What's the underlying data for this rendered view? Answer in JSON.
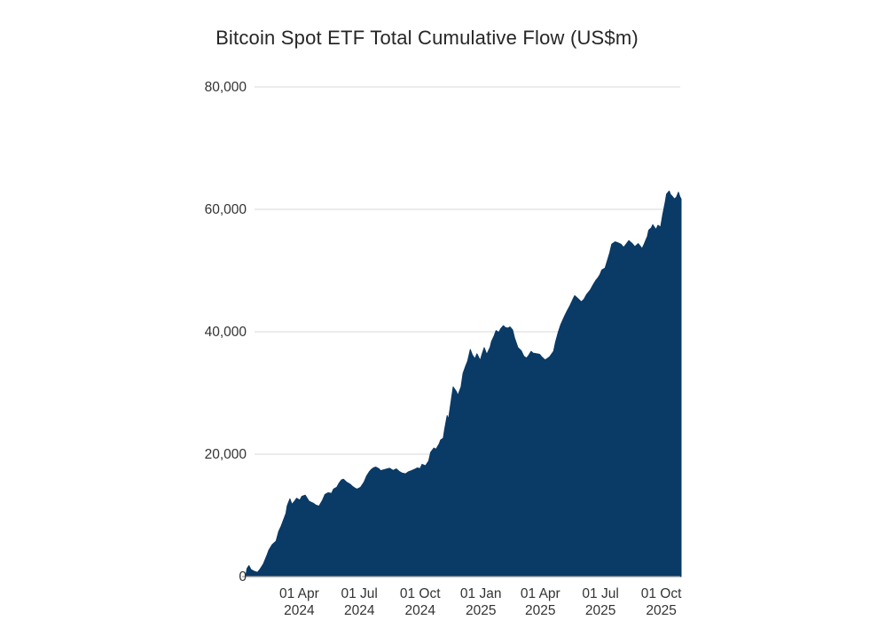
{
  "chart_data": {
    "type": "area",
    "title": "Bitcoin Spot ETF Total Cumulative Flow (US$m)",
    "series_name": "Total Cumulative Flow",
    "unit": "US$m",
    "fill_color": "#0a3a66",
    "background_color": "#ffffff",
    "grid_color": "#d8d8d8",
    "axis_line_color": "#999999",
    "text_color": "#333333",
    "grid": "horizontal",
    "legend": "none",
    "ylim": [
      0,
      80000
    ],
    "x_domain": [
      "2024-01-11",
      "2025-10-31"
    ],
    "y_ticks": [
      {
        "value": 0,
        "label": "0"
      },
      {
        "value": 20000,
        "label": "20,000"
      },
      {
        "value": 40000,
        "label": "40,000"
      },
      {
        "value": 60000,
        "label": "60,000"
      },
      {
        "value": 80000,
        "label": "80,000"
      }
    ],
    "x_ticks": [
      {
        "date": "2024-04-01",
        "line1": "01 Apr",
        "line2": "2024"
      },
      {
        "date": "2024-07-01",
        "line1": "01 Jul",
        "line2": "2024"
      },
      {
        "date": "2024-10-01",
        "line1": "01 Oct",
        "line2": "2024"
      },
      {
        "date": "2025-01-01",
        "line1": "01 Jan",
        "line2": "2025"
      },
      {
        "date": "2025-04-01",
        "line1": "01 Apr",
        "line2": "2025"
      },
      {
        "date": "2025-07-01",
        "line1": "01 Jul",
        "line2": "2025"
      },
      {
        "date": "2025-10-01",
        "line1": "01 Oct",
        "line2": "2025"
      }
    ],
    "points": [
      [
        "2024-01-11",
        50
      ],
      [
        "2024-01-13",
        1300
      ],
      [
        "2024-01-16",
        1800
      ],
      [
        "2024-01-19",
        1150
      ],
      [
        "2024-01-24",
        850
      ],
      [
        "2024-01-29",
        700
      ],
      [
        "2024-02-02",
        1250
      ],
      [
        "2024-02-07",
        2100
      ],
      [
        "2024-02-12",
        3400
      ],
      [
        "2024-02-15",
        4300
      ],
      [
        "2024-02-20",
        5200
      ],
      [
        "2024-02-26",
        5800
      ],
      [
        "2024-03-01",
        7400
      ],
      [
        "2024-03-05",
        8300
      ],
      [
        "2024-03-08",
        9200
      ],
      [
        "2024-03-12",
        10300
      ],
      [
        "2024-03-14",
        11600
      ],
      [
        "2024-03-18",
        12700
      ],
      [
        "2024-03-21",
        11800
      ],
      [
        "2024-03-25",
        12300
      ],
      [
        "2024-03-28",
        12800
      ],
      [
        "2024-04-02",
        12500
      ],
      [
        "2024-04-05",
        13100
      ],
      [
        "2024-04-10",
        13300
      ],
      [
        "2024-04-16",
        12300
      ],
      [
        "2024-04-22",
        12000
      ],
      [
        "2024-04-26",
        11700
      ],
      [
        "2024-05-01",
        11500
      ],
      [
        "2024-05-06",
        12400
      ],
      [
        "2024-05-10",
        13400
      ],
      [
        "2024-05-15",
        13700
      ],
      [
        "2024-05-20",
        13600
      ],
      [
        "2024-05-23",
        14300
      ],
      [
        "2024-05-28",
        14600
      ],
      [
        "2024-05-31",
        15200
      ],
      [
        "2024-06-04",
        15800
      ],
      [
        "2024-06-07",
        15900
      ],
      [
        "2024-06-12",
        15400
      ],
      [
        "2024-06-17",
        15100
      ],
      [
        "2024-06-21",
        14700
      ],
      [
        "2024-06-25",
        14400
      ],
      [
        "2024-06-28",
        14300
      ],
      [
        "2024-07-03",
        14600
      ],
      [
        "2024-07-08",
        15400
      ],
      [
        "2024-07-12",
        16400
      ],
      [
        "2024-07-16",
        17100
      ],
      [
        "2024-07-19",
        17500
      ],
      [
        "2024-07-23",
        17800
      ],
      [
        "2024-07-26",
        17900
      ],
      [
        "2024-07-31",
        17600
      ],
      [
        "2024-08-02",
        17300
      ],
      [
        "2024-08-07",
        17450
      ],
      [
        "2024-08-12",
        17600
      ],
      [
        "2024-08-16",
        17700
      ],
      [
        "2024-08-21",
        17350
      ],
      [
        "2024-08-26",
        17600
      ],
      [
        "2024-08-30",
        17200
      ],
      [
        "2024-09-04",
        16900
      ],
      [
        "2024-09-09",
        16800
      ],
      [
        "2024-09-13",
        17100
      ],
      [
        "2024-09-18",
        17300
      ],
      [
        "2024-09-24",
        17600
      ],
      [
        "2024-09-27",
        17750
      ],
      [
        "2024-10-01",
        17650
      ],
      [
        "2024-10-04",
        18350
      ],
      [
        "2024-10-09",
        18100
      ],
      [
        "2024-10-14",
        18900
      ],
      [
        "2024-10-17",
        20300
      ],
      [
        "2024-10-22",
        21000
      ],
      [
        "2024-10-25",
        20800
      ],
      [
        "2024-10-30",
        21700
      ],
      [
        "2024-11-01",
        22300
      ],
      [
        "2024-11-05",
        22600
      ],
      [
        "2024-11-07",
        24000
      ],
      [
        "2024-11-11",
        26300
      ],
      [
        "2024-11-13",
        25700
      ],
      [
        "2024-11-15",
        27200
      ],
      [
        "2024-11-20",
        31000
      ],
      [
        "2024-11-25",
        30200
      ],
      [
        "2024-11-27",
        29600
      ],
      [
        "2024-12-02",
        31000
      ],
      [
        "2024-12-05",
        33200
      ],
      [
        "2024-12-09",
        34400
      ],
      [
        "2024-12-12",
        35200
      ],
      [
        "2024-12-16",
        37100
      ],
      [
        "2024-12-19",
        36200
      ],
      [
        "2024-12-23",
        35600
      ],
      [
        "2024-12-26",
        36400
      ],
      [
        "2024-12-31",
        35300
      ],
      [
        "2025-01-03",
        36400
      ],
      [
        "2025-01-06",
        37400
      ],
      [
        "2025-01-10",
        36300
      ],
      [
        "2025-01-15",
        37500
      ],
      [
        "2025-01-17",
        38400
      ],
      [
        "2025-01-21",
        39300
      ],
      [
        "2025-01-24",
        40200
      ],
      [
        "2025-01-28",
        39900
      ],
      [
        "2025-01-31",
        40500
      ],
      [
        "2025-02-04",
        41000
      ],
      [
        "2025-02-07",
        40700
      ],
      [
        "2025-02-11",
        40600
      ],
      [
        "2025-02-14",
        40800
      ],
      [
        "2025-02-18",
        40300
      ],
      [
        "2025-02-21",
        39000
      ],
      [
        "2025-02-26",
        37400
      ],
      [
        "2025-03-03",
        36900
      ],
      [
        "2025-03-07",
        36000
      ],
      [
        "2025-03-11",
        35700
      ],
      [
        "2025-03-14",
        36100
      ],
      [
        "2025-03-18",
        36800
      ],
      [
        "2025-03-21",
        36500
      ],
      [
        "2025-03-26",
        36400
      ],
      [
        "2025-03-31",
        36300
      ],
      [
        "2025-04-03",
        35900
      ],
      [
        "2025-04-08",
        35400
      ],
      [
        "2025-04-11",
        35600
      ],
      [
        "2025-04-15",
        35900
      ],
      [
        "2025-04-21",
        36800
      ],
      [
        "2025-04-24",
        38300
      ],
      [
        "2025-04-28",
        39900
      ],
      [
        "2025-05-02",
        41200
      ],
      [
        "2025-05-07",
        42400
      ],
      [
        "2025-05-12",
        43500
      ],
      [
        "2025-05-16",
        44300
      ],
      [
        "2025-05-21",
        45500
      ],
      [
        "2025-05-23",
        45900
      ],
      [
        "2025-05-28",
        45400
      ],
      [
        "2025-06-02",
        44900
      ],
      [
        "2025-06-06",
        45300
      ],
      [
        "2025-06-10",
        46100
      ],
      [
        "2025-06-16",
        46900
      ],
      [
        "2025-06-20",
        47700
      ],
      [
        "2025-06-24",
        48400
      ],
      [
        "2025-06-27",
        48800
      ],
      [
        "2025-06-30",
        49300
      ],
      [
        "2025-07-03",
        50100
      ],
      [
        "2025-07-08",
        50400
      ],
      [
        "2025-07-11",
        51500
      ],
      [
        "2025-07-15",
        52900
      ],
      [
        "2025-07-18",
        54300
      ],
      [
        "2025-07-23",
        54700
      ],
      [
        "2025-07-28",
        54500
      ],
      [
        "2025-08-01",
        54300
      ],
      [
        "2025-08-05",
        53800
      ],
      [
        "2025-08-08",
        54200
      ],
      [
        "2025-08-13",
        54900
      ],
      [
        "2025-08-18",
        54400
      ],
      [
        "2025-08-22",
        53900
      ],
      [
        "2025-08-27",
        54400
      ],
      [
        "2025-09-02",
        53600
      ],
      [
        "2025-09-05",
        54300
      ],
      [
        "2025-09-10",
        55600
      ],
      [
        "2025-09-12",
        56600
      ],
      [
        "2025-09-16",
        57000
      ],
      [
        "2025-09-18",
        57500
      ],
      [
        "2025-09-23",
        56700
      ],
      [
        "2025-09-26",
        57400
      ],
      [
        "2025-09-30",
        57100
      ],
      [
        "2025-10-03",
        59000
      ],
      [
        "2025-10-07",
        61200
      ],
      [
        "2025-10-09",
        62500
      ],
      [
        "2025-10-13",
        63000
      ],
      [
        "2025-10-15",
        62400
      ],
      [
        "2025-10-17",
        62200
      ],
      [
        "2025-10-21",
        61700
      ],
      [
        "2025-10-24",
        62000
      ],
      [
        "2025-10-27",
        62800
      ],
      [
        "2025-10-29",
        62100
      ],
      [
        "2025-10-31",
        61700
      ]
    ]
  }
}
